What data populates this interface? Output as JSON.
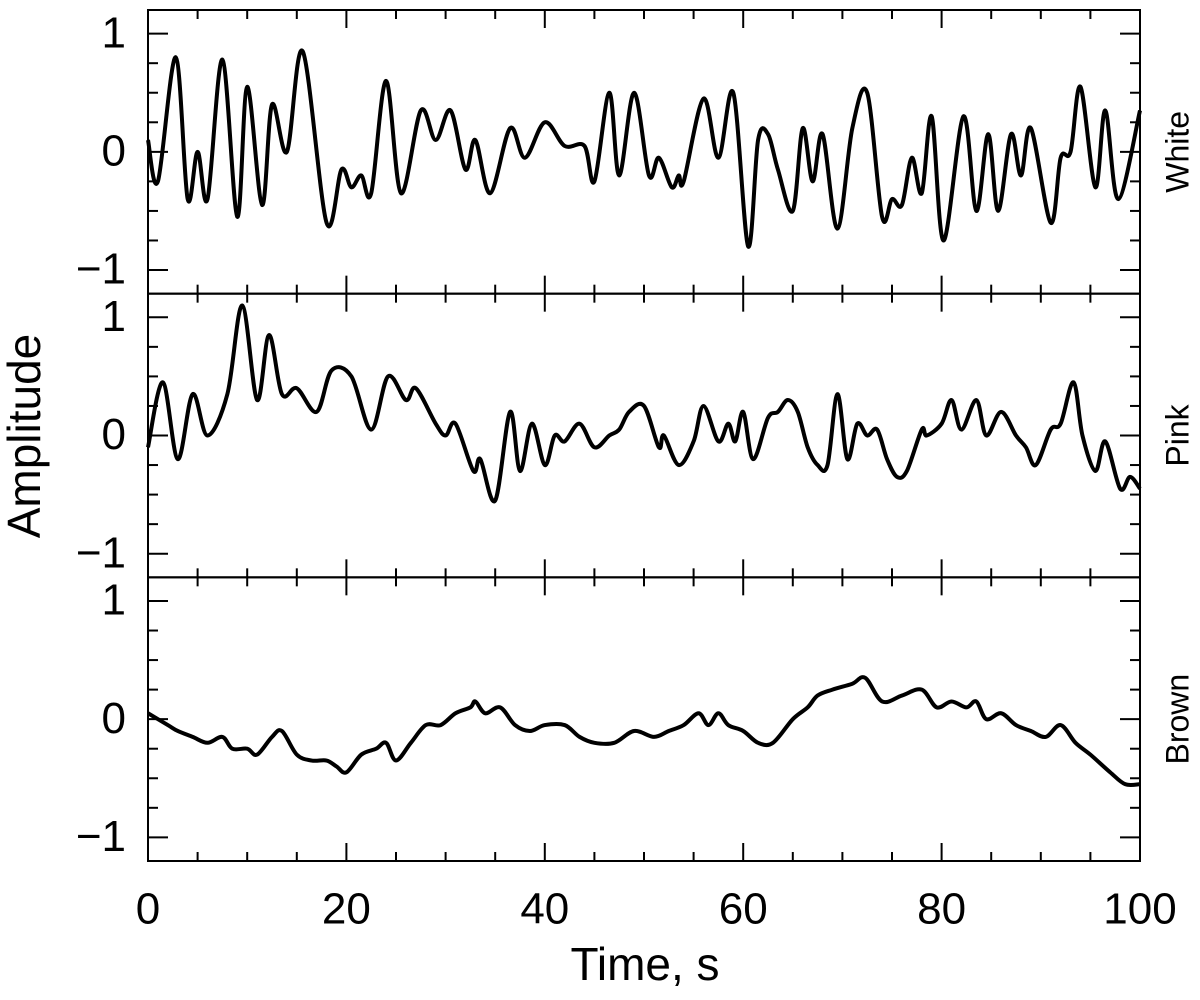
{
  "chart_data": {
    "type": "line",
    "xlabel": "Time, s",
    "ylabel": "Amplitude",
    "xlim": [
      0,
      100
    ],
    "ylim": [
      -1.2,
      1.2
    ],
    "xticks": [
      0,
      20,
      40,
      60,
      80,
      100
    ],
    "xminorticks": [
      5,
      10,
      15,
      25,
      30,
      35,
      45,
      50,
      55,
      65,
      70,
      75,
      85,
      90,
      95
    ],
    "yticks": [
      {
        "value": -1,
        "label": "−1"
      },
      0,
      1
    ],
    "yminorticks": [
      -0.75,
      -0.5,
      -0.25,
      0.25,
      0.5,
      0.75
    ],
    "series": [
      {
        "name": "White",
        "color": "#000000",
        "x": [
          0,
          1,
          2.8,
          4,
          5,
          6,
          7.5,
          9,
          10,
          11.5,
          12.5,
          14,
          15.6,
          18,
          19.5,
          20.5,
          21.5,
          22.5,
          24,
          25.5,
          27.5,
          29,
          30.5,
          32,
          33,
          34.5,
          36.5,
          38,
          40,
          42,
          44,
          45,
          46.5,
          47.5,
          49,
          50.5,
          51.5,
          52.8,
          53.5,
          54,
          56,
          57.5,
          59,
          60.5,
          61.5,
          62.5,
          63.5,
          65,
          66,
          67,
          68,
          69.5,
          71,
          72.5,
          74,
          75,
          76,
          77,
          78,
          79,
          80.2,
          82.2,
          83.5,
          84.7,
          85.7,
          87,
          88,
          89,
          91,
          92,
          93,
          94,
          95.5,
          96.5,
          97.8,
          100
        ],
        "values": [
          0.1,
          -0.25,
          0.8,
          -0.4,
          0.0,
          -0.4,
          0.78,
          -0.55,
          0.55,
          -0.45,
          0.4,
          0.0,
          0.85,
          -0.6,
          -0.15,
          -0.3,
          -0.2,
          -0.35,
          0.6,
          -0.35,
          0.35,
          0.1,
          0.35,
          -0.15,
          0.1,
          -0.35,
          0.2,
          -0.05,
          0.25,
          0.05,
          0.05,
          -0.25,
          0.5,
          -0.2,
          0.5,
          -0.2,
          -0.05,
          -0.3,
          -0.2,
          -0.25,
          0.45,
          -0.05,
          0.5,
          -0.8,
          0.1,
          0.15,
          -0.15,
          -0.5,
          0.2,
          -0.25,
          0.15,
          -0.65,
          0.2,
          0.5,
          -0.55,
          -0.4,
          -0.45,
          -0.05,
          -0.35,
          0.3,
          -0.75,
          0.3,
          -0.5,
          0.15,
          -0.5,
          0.15,
          -0.2,
          0.2,
          -0.6,
          -0.05,
          0.0,
          0.55,
          -0.3,
          0.35,
          -0.4,
          0.35
        ]
      },
      {
        "name": "Pink",
        "color": "#000000",
        "x": [
          0,
          1.5,
          3,
          4.5,
          6,
          8,
          9.5,
          11,
          12.2,
          13.5,
          15,
          17,
          18.5,
          20.5,
          22.5,
          24.2,
          26,
          27,
          29,
          30,
          31,
          32.8,
          33.5,
          35,
          36.5,
          37.5,
          38.7,
          40,
          41,
          42,
          43.5,
          45,
          46.5,
          47.5,
          48.5,
          50,
          51.5,
          52,
          53.5,
          55,
          56,
          57.5,
          58.5,
          59.2,
          60,
          61,
          62.5,
          63.5,
          64.5,
          65.5,
          66.5,
          67.5,
          68.5,
          69.5,
          70.5,
          71.5,
          72.5,
          73.5,
          74.5,
          75.5,
          76.5,
          78,
          78.5,
          80,
          81,
          82,
          83.5,
          84.5,
          86,
          87.5,
          88.5,
          89.5,
          91,
          92,
          93.3,
          94.2,
          95.5,
          96.5,
          98,
          99,
          100
        ],
        "values": [
          -0.1,
          0.45,
          -0.2,
          0.35,
          0.0,
          0.35,
          1.1,
          0.3,
          0.85,
          0.35,
          0.4,
          0.2,
          0.55,
          0.5,
          0.05,
          0.5,
          0.3,
          0.4,
          0.1,
          0.0,
          0.1,
          -0.3,
          -0.2,
          -0.55,
          0.2,
          -0.3,
          0.1,
          -0.25,
          0.0,
          -0.05,
          0.1,
          -0.1,
          0.0,
          0.05,
          0.2,
          0.25,
          -0.1,
          0.0,
          -0.25,
          -0.05,
          0.25,
          -0.05,
          0.1,
          -0.05,
          0.2,
          -0.2,
          0.15,
          0.2,
          0.3,
          0.2,
          -0.1,
          -0.25,
          -0.25,
          0.35,
          -0.2,
          0.1,
          0.0,
          0.05,
          -0.2,
          -0.35,
          -0.3,
          0.05,
          0.0,
          0.1,
          0.3,
          0.05,
          0.3,
          0.0,
          0.2,
          0.0,
          -0.1,
          -0.25,
          0.05,
          0.1,
          0.45,
          0.0,
          -0.3,
          -0.05,
          -0.45,
          -0.35,
          -0.45
        ]
      },
      {
        "name": "Brown",
        "color": "#000000",
        "x": [
          0,
          2,
          3,
          4.5,
          6,
          7.5,
          8.5,
          10,
          11,
          12.5,
          13.5,
          15,
          16.5,
          18,
          19,
          20,
          21.5,
          23,
          24,
          25,
          26.5,
          28,
          29.5,
          31,
          32.5,
          33,
          34,
          35.5,
          37,
          38.5,
          40,
          42,
          43.5,
          45,
          47,
          49,
          51,
          52.5,
          54,
          55.5,
          56.5,
          57.5,
          58.5,
          60,
          61.5,
          63,
          65,
          66.5,
          67.5,
          69,
          71,
          72.3,
          74,
          76,
          78,
          79.5,
          81,
          82.5,
          83.5,
          84.5,
          86,
          87.5,
          89,
          90.5,
          92,
          93.5,
          95,
          97,
          98.5,
          100
        ],
        "values": [
          0.05,
          -0.05,
          -0.1,
          -0.15,
          -0.2,
          -0.15,
          -0.25,
          -0.25,
          -0.3,
          -0.15,
          -0.1,
          -0.3,
          -0.35,
          -0.35,
          -0.4,
          -0.45,
          -0.3,
          -0.25,
          -0.2,
          -0.35,
          -0.2,
          -0.05,
          -0.05,
          0.05,
          0.1,
          0.15,
          0.05,
          0.1,
          -0.05,
          -0.1,
          -0.05,
          -0.05,
          -0.15,
          -0.2,
          -0.2,
          -0.1,
          -0.15,
          -0.1,
          -0.05,
          0.05,
          -0.05,
          0.05,
          -0.05,
          -0.1,
          -0.2,
          -0.2,
          0.0,
          0.1,
          0.2,
          0.25,
          0.3,
          0.35,
          0.15,
          0.2,
          0.25,
          0.1,
          0.15,
          0.1,
          0.15,
          0.0,
          0.05,
          -0.05,
          -0.1,
          -0.15,
          -0.05,
          -0.2,
          -0.3,
          -0.45,
          -0.55,
          -0.55
        ]
      }
    ]
  }
}
